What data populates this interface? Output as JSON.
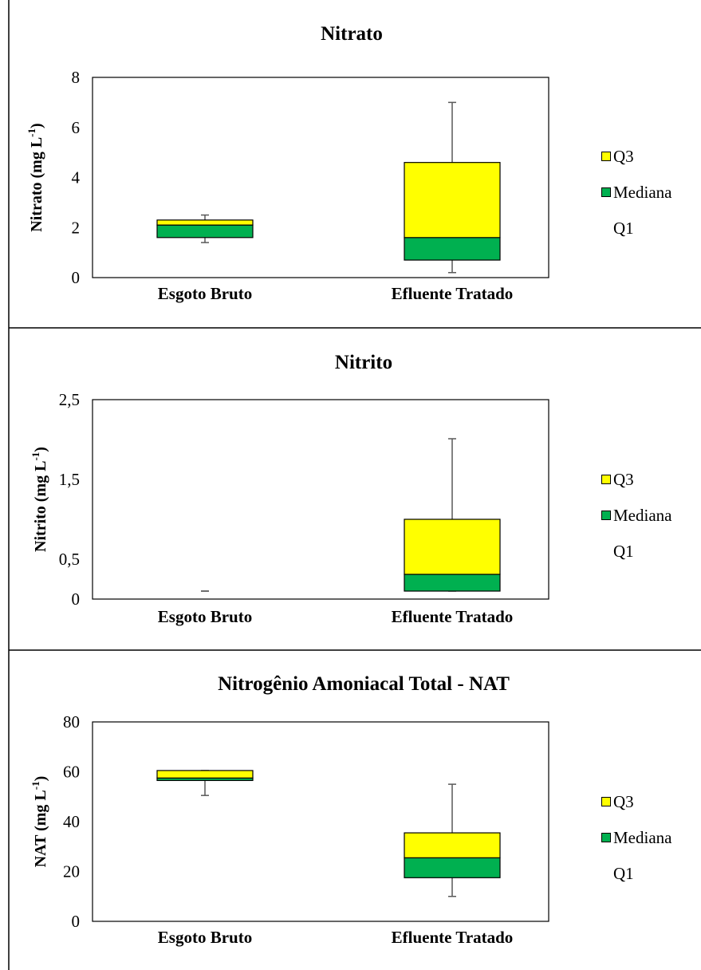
{
  "colors": {
    "q3": "#ffff00",
    "median": "#00b050",
    "whisker": "#595959",
    "axis": "#000000",
    "divider": "#000000"
  },
  "chart_data": [
    {
      "type": "boxplot",
      "title": "Nitrato",
      "ylabel_main": "Nitrato (mg L",
      "ylabel_sup": "-1",
      "ylabel_close": ")",
      "ylim": [
        0,
        8
      ],
      "yticks": [
        0,
        2,
        4,
        6,
        8
      ],
      "ytick_labels": [
        "0",
        "2",
        "4",
        "6",
        "8"
      ],
      "categories": [
        "Esgoto Bruto",
        "Efluente Tratado"
      ],
      "boxes": [
        {
          "category": "Esgoto Bruto",
          "min": 1.4,
          "q1": 1.6,
          "median": 2.1,
          "q3": 2.3,
          "max": 2.5
        },
        {
          "category": "Efluente Tratado",
          "min": 0.2,
          "q1": 0.7,
          "median": 1.6,
          "q3": 4.6,
          "max": 7.0
        }
      ],
      "legend": [
        "Q3",
        "Mediana",
        "Q1"
      ]
    },
    {
      "type": "boxplot",
      "title": "Nitrito",
      "ylabel_main": "Nitrito (mg L",
      "ylabel_sup": "-1",
      "ylabel_close": ")",
      "ylim": [
        0,
        2.5
      ],
      "yticks": [
        0,
        0.5,
        1.5,
        2.5
      ],
      "ytick_labels": [
        "0",
        "0,5",
        "1,5",
        "2,5"
      ],
      "categories": [
        "Esgoto Bruto",
        "Efluente Tratado"
      ],
      "boxes": [
        {
          "category": "Esgoto Bruto",
          "min": 0.1,
          "q1": 0.1,
          "median": 0.1,
          "q3": 0.1,
          "max": 0.1
        },
        {
          "category": "Efluente Tratado",
          "min": 0.1,
          "q1": 0.1,
          "median": 0.31,
          "q3": 1.0,
          "max": 2.01
        }
      ],
      "legend": [
        "Q3",
        "Mediana",
        "Q1"
      ]
    },
    {
      "type": "boxplot",
      "title": "Nitrogênio Amoniacal Total - NAT",
      "ylabel_main": "NAT (mg L",
      "ylabel_sup": "-1",
      "ylabel_close": ")",
      "ylim": [
        0,
        80
      ],
      "yticks": [
        0,
        20,
        40,
        60,
        80
      ],
      "ytick_labels": [
        "0",
        "20",
        "40",
        "60",
        "80"
      ],
      "categories": [
        "Esgoto Bruto",
        "Efluente Tratado"
      ],
      "boxes": [
        {
          "category": "Esgoto Bruto",
          "min": 50.5,
          "q1": 56.5,
          "median": 57.5,
          "q3": 60.5,
          "max": 60.5
        },
        {
          "category": "Efluente Tratado",
          "min": 10,
          "q1": 17.5,
          "median": 25.5,
          "q3": 35.5,
          "max": 55
        }
      ],
      "legend": [
        "Q3",
        "Mediana",
        "Q1"
      ]
    }
  ]
}
